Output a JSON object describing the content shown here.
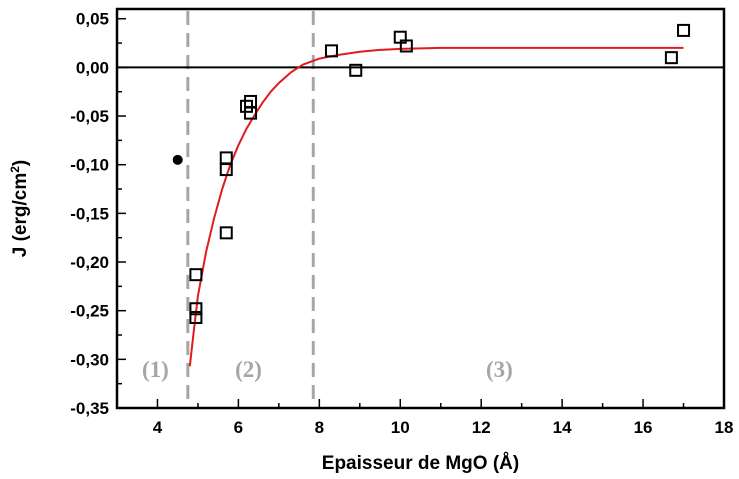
{
  "chart_data": {
    "type": "scatter",
    "title": "",
    "xlabel": "Epaisseur de MgO (Å)",
    "ylabel": "J (erg/cm²)",
    "ylabel_main": "J (erg/cm",
    "ylabel_sup": "2",
    "ylabel_close": ")",
    "xlim": [
      3,
      18
    ],
    "ylim": [
      -0.35,
      0.06
    ],
    "x_ticks": [
      4,
      6,
      8,
      10,
      12,
      14,
      16,
      18
    ],
    "x_tick_labels": [
      "4",
      "6",
      "8",
      "10",
      "12",
      "14",
      "16",
      "18"
    ],
    "y_ticks": [
      0.05,
      0.0,
      -0.05,
      -0.1,
      -0.15,
      -0.2,
      -0.25,
      -0.3,
      -0.35
    ],
    "y_tick_labels": [
      "0,05",
      "0,00",
      "-0,05",
      "-0,10",
      "-0,15",
      "-0,20",
      "-0,25",
      "-0,30",
      "-0,35"
    ],
    "grid": false,
    "zero_line": true,
    "series": [
      {
        "marker": "open-square",
        "points": [
          [
            4.95,
            -0.213
          ],
          [
            4.95,
            -0.248
          ],
          [
            4.95,
            -0.257
          ],
          [
            5.7,
            -0.093
          ],
          [
            5.7,
            -0.105
          ],
          [
            5.7,
            -0.17
          ],
          [
            6.2,
            -0.04
          ],
          [
            6.3,
            -0.035
          ],
          [
            6.3,
            -0.047
          ],
          [
            8.3,
            0.017
          ],
          [
            8.9,
            -0.003
          ],
          [
            10.0,
            0.031
          ],
          [
            10.15,
            0.022
          ],
          [
            16.7,
            0.01
          ],
          [
            17.0,
            0.038
          ]
        ]
      },
      {
        "marker": "filled-circle",
        "points": [
          [
            4.5,
            -0.095
          ]
        ]
      }
    ],
    "fit_curve": {
      "color": "#e31a1c",
      "points": [
        [
          4.8,
          -0.307
        ],
        [
          4.9,
          -0.27
        ],
        [
          5.0,
          -0.235
        ],
        [
          5.2,
          -0.19
        ],
        [
          5.4,
          -0.155
        ],
        [
          5.6,
          -0.125
        ],
        [
          5.8,
          -0.1
        ],
        [
          6.0,
          -0.08
        ],
        [
          6.2,
          -0.063
        ],
        [
          6.4,
          -0.049
        ],
        [
          6.6,
          -0.036
        ],
        [
          6.8,
          -0.025
        ],
        [
          7.0,
          -0.016
        ],
        [
          7.3,
          -0.005
        ],
        [
          7.6,
          0.003
        ],
        [
          8.0,
          0.009
        ],
        [
          8.5,
          0.013
        ],
        [
          9.0,
          0.016
        ],
        [
          9.5,
          0.018
        ],
        [
          10.0,
          0.019
        ],
        [
          11.0,
          0.02
        ],
        [
          12.0,
          0.02
        ],
        [
          14.0,
          0.02
        ],
        [
          16.0,
          0.02
        ],
        [
          17.0,
          0.02
        ]
      ]
    },
    "vlines": [
      {
        "x": 4.75,
        "style": "dashed",
        "color": "#a6a6a6"
      },
      {
        "x": 7.85,
        "style": "dashed",
        "color": "#a6a6a6"
      }
    ],
    "annotations": [
      {
        "text": "(1)",
        "x": 3.95,
        "y": -0.31
      },
      {
        "text": "(2)",
        "x": 6.25,
        "y": -0.31
      },
      {
        "text": "(3)",
        "x": 12.45,
        "y": -0.31
      }
    ]
  }
}
